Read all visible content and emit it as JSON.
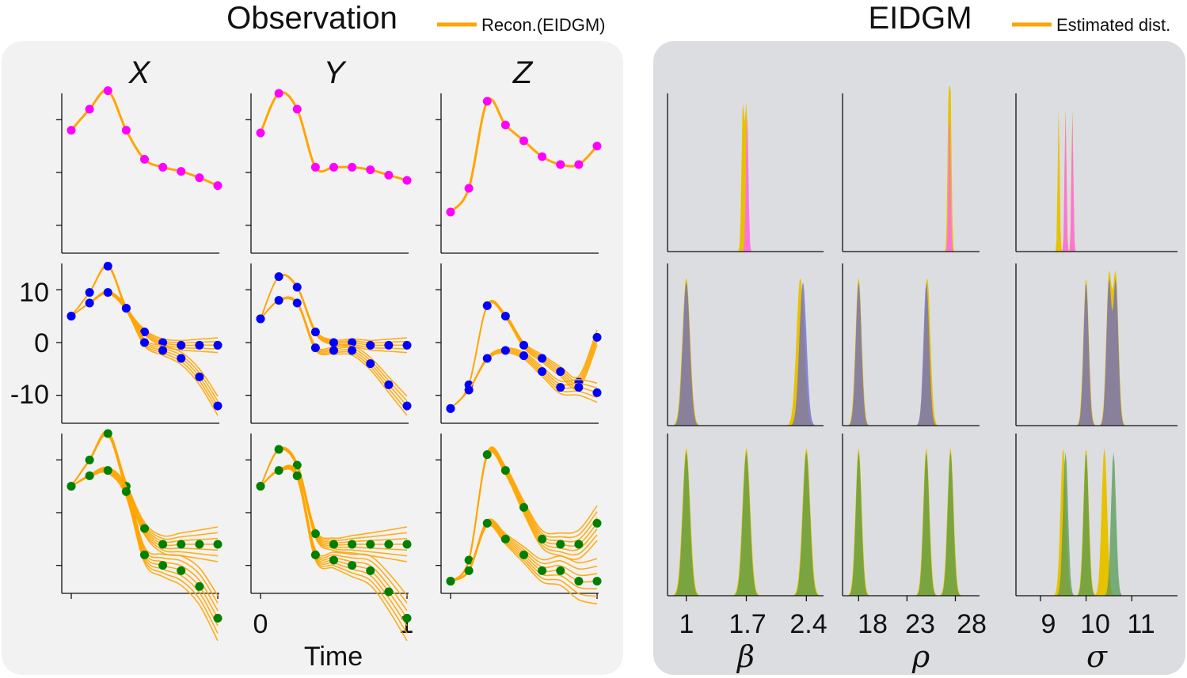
{
  "left_panel": {
    "title": "Observation",
    "legend_label": "Recon.(EIDGM)",
    "legend_color": "#FFA500",
    "col_titles": [
      "X",
      "Y",
      "Z"
    ],
    "row_y_ticks": [
      "10",
      "0",
      "-10"
    ],
    "x_ticks": [
      "0",
      "1"
    ],
    "xlabel": "Time"
  },
  "right_panel": {
    "title": "EIDGM",
    "legend_label": "Estimated dist.",
    "legend_color": "#FFA500",
    "col_xlabels": [
      "β",
      "ρ",
      "σ"
    ],
    "beta_ticks": [
      "1",
      "1.7",
      "2.4"
    ],
    "rho_ticks": [
      "18",
      "23",
      "28"
    ],
    "sigma_ticks": [
      "9",
      "10",
      "11"
    ]
  },
  "colors": {
    "recon": "#FFA500",
    "row1_obs": "#FF00FF",
    "row2_obs": "#0000FF",
    "row3_obs": "#008000",
    "estimated": "#E6C200",
    "true_row1": "#FF66FF",
    "true_row2": "#6A6ACF",
    "true_row3": "#559955",
    "overlap_row2": "#70607A",
    "overlap_row3": "#6A9A10"
  },
  "chart_data": [
    {
      "type": "line",
      "title": "Observation",
      "description": "Observed trajectories (dots) and EIDGM reconstructions (orange lines), 3 rows x 3 state variables",
      "columns": [
        "X",
        "Y",
        "Z"
      ],
      "x": [
        0,
        0.125,
        0.25,
        0.375,
        0.5,
        0.625,
        0.75,
        0.875,
        1.0
      ],
      "xlabel": "Time",
      "ylim": [
        -15,
        15
      ],
      "yticks": [
        -10,
        0,
        10
      ],
      "rows": [
        {
          "name": "row1",
          "series": [
            {
              "name": "X",
              "values": [
                8.0,
                12.0,
                15.5,
                8.0,
                2.5,
                1.0,
                0.2,
                -1.0,
                -2.5
              ]
            },
            {
              "name": "Y",
              "values": [
                7.5,
                15.0,
                12.0,
                1.0,
                1.0,
                1.0,
                0.5,
                -0.5,
                -1.5
              ]
            },
            {
              "name": "Z",
              "values": [
                -7.5,
                -3.0,
                13.5,
                9.0,
                6.0,
                3.0,
                1.5,
                1.5,
                5.0
              ]
            }
          ]
        },
        {
          "name": "row2",
          "series": [
            {
              "name": "X_a",
              "values": [
                5,
                9.5,
                14.5,
                6.5,
                2,
                0,
                -0.5,
                -0.5,
                -0.5
              ]
            },
            {
              "name": "X_b",
              "values": [
                5,
                7.5,
                9.5,
                6.5,
                0,
                -1.5,
                -3,
                -6.5,
                -12
              ]
            },
            {
              "name": "Y_a",
              "values": [
                4.5,
                12.5,
                10.5,
                2,
                0,
                0,
                -0.5,
                -0.5,
                -0.5
              ]
            },
            {
              "name": "Y_b",
              "values": [
                4.5,
                8,
                7.5,
                -1,
                -1.5,
                -1.5,
                -4,
                -8,
                -12
              ]
            },
            {
              "name": "Z_a",
              "values": [
                -12.5,
                -8,
                7,
                5,
                -0.5,
                -3,
                -5.5,
                -7.5,
                1
              ]
            },
            {
              "name": "Z_b",
              "values": [
                -12.5,
                -9,
                -3,
                -1.5,
                -2.5,
                -5.5,
                -8.5,
                -8.5,
                -9.5
              ]
            }
          ]
        },
        {
          "name": "row3",
          "series": [
            {
              "name": "X_a",
              "values": [
                5,
                10,
                15,
                5,
                -3,
                -6,
                -6,
                -6,
                -6
              ]
            },
            {
              "name": "X_b",
              "values": [
                5,
                7,
                8,
                4,
                -8,
                -10,
                -11,
                -14,
                -20
              ]
            },
            {
              "name": "Y_a",
              "values": [
                5,
                12,
                9,
                -4,
                -6,
                -6,
                -6,
                -6,
                -6
              ]
            },
            {
              "name": "Y_b",
              "values": [
                5,
                8,
                7,
                -8,
                -9,
                -10,
                -11,
                -15,
                -20
              ]
            },
            {
              "name": "Z_a",
              "values": [
                -13,
                -9,
                11,
                8,
                1,
                -5,
                -6,
                -6,
                -2
              ]
            },
            {
              "name": "Z_b",
              "values": [
                -13,
                -11,
                -2,
                -5,
                -8,
                -11,
                -11,
                -13,
                -13
              ]
            }
          ]
        }
      ]
    },
    {
      "type": "area",
      "title": "EIDGM",
      "description": "Estimated parameter distributions (yellow) vs true distributions per row",
      "parameters": [
        "β",
        "ρ",
        "σ"
      ],
      "x_ranges": {
        "beta": [
          0.8,
          2.6
        ],
        "rho": [
          16.5,
          30.5
        ],
        "sigma": [
          8.5,
          12.0
        ]
      },
      "x_ticks": {
        "beta": [
          1,
          1.7,
          2.4
        ],
        "rho": [
          18,
          23,
          28
        ],
        "sigma": [
          9,
          10,
          11
        ]
      },
      "rows": [
        {
          "name": "row1",
          "beta": {
            "estimated_peaks": [
              1.66,
              1.7
            ],
            "true_peaks": [
              1.71
            ]
          },
          "rho": {
            "estimated_peaks": [
              27.3,
              27.5
            ],
            "true_peaks": [
              27.4
            ]
          },
          "sigma": {
            "estimated_peaks": [
              9.4,
              9.55,
              9.7
            ],
            "true_peaks": [
              9.55,
              9.7
            ]
          }
        },
        {
          "name": "row2",
          "beta": {
            "estimated_peaks": [
              1.0,
              2.33
            ],
            "true_peaks": [
              1.0,
              2.36
            ]
          },
          "rho": {
            "estimated_peaks": [
              18.0,
              25.1
            ],
            "true_peaks": [
              18.0,
              25.0
            ]
          },
          "sigma": {
            "estimated_peaks": [
              10.0,
              10.5,
              10.65
            ],
            "true_peaks": [
              10.0,
              10.5,
              10.65
            ]
          }
        },
        {
          "name": "row3",
          "beta": {
            "estimated_peaks": [
              1.0,
              1.7,
              2.4
            ],
            "true_peaks": [
              1.0,
              1.7,
              2.4
            ]
          },
          "rho": {
            "estimated_peaks": [
              18.0,
              25.0,
              27.5
            ],
            "true_peaks": [
              18.0,
              25.0,
              27.5
            ]
          },
          "sigma": {
            "estimated_peaks": [
              9.5,
              10.0,
              10.4
            ],
            "true_peaks": [
              9.55,
              10.0,
              10.6
            ]
          }
        }
      ]
    }
  ]
}
